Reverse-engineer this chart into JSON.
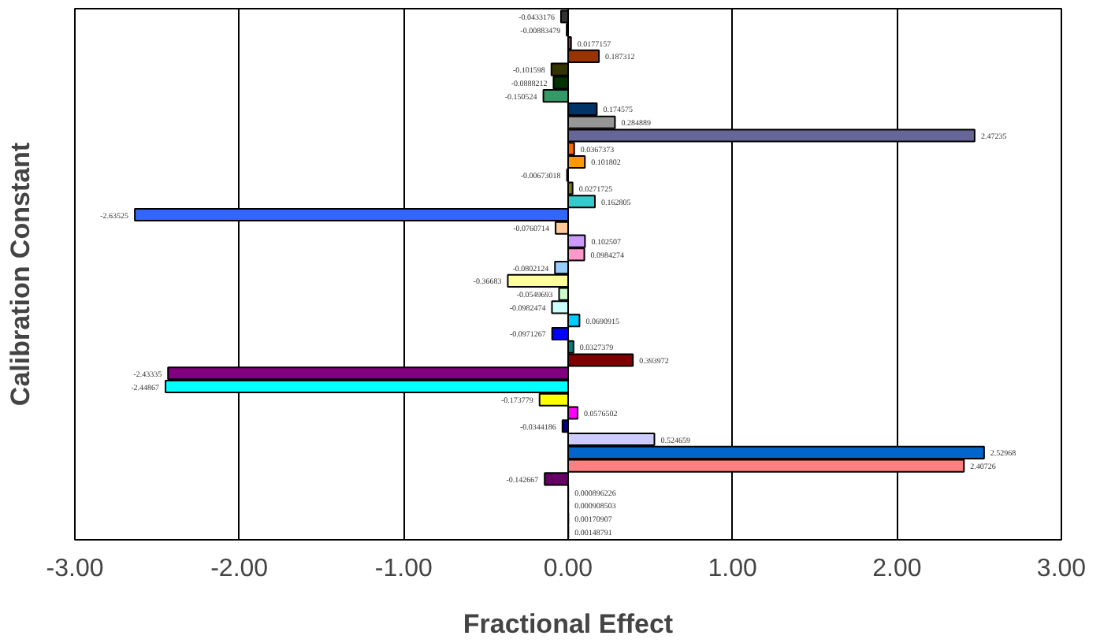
{
  "chart_data": {
    "type": "bar",
    "orientation": "horizontal",
    "xlabel": "Fractional Effect",
    "ylabel": "Calibration Constant",
    "categories": [
      null,
      null,
      null,
      null,
      null,
      null,
      null,
      null,
      null,
      null,
      null,
      null,
      null,
      null,
      null,
      null,
      null,
      null,
      null,
      null,
      null,
      null,
      null,
      null,
      null,
      null,
      null,
      null,
      null,
      null,
      null,
      null,
      null,
      null,
      null,
      null,
      null,
      null,
      null,
      null
    ],
    "values": [
      -0.0433176,
      -0.00883479,
      0.0177157,
      0.187312,
      -0.101598,
      -0.0888212,
      -0.150524,
      0.174575,
      0.284889,
      2.47235,
      0.0367373,
      0.101802,
      -0.00673018,
      0.0271725,
      0.162805,
      -2.63525,
      -0.0760714,
      0.102507,
      0.0984274,
      -0.0802124,
      -0.36683,
      -0.0549693,
      -0.0982474,
      0.0690915,
      -0.0971267,
      0.0327379,
      0.393972,
      -2.43335,
      -2.44867,
      -0.173779,
      0.0576502,
      -0.0344186,
      0.524659,
      2.52968,
      2.40726,
      -0.142667,
      0.000896226,
      0.000908503,
      0.00170907,
      0.00148791
    ],
    "colors": [
      "#333333",
      "#000080",
      "#993366",
      "#993300",
      "#333300",
      "#003300",
      "#339966",
      "#003366",
      "#969696",
      "#666699",
      "#ff6600",
      "#ff9900",
      "#808000",
      "#808000",
      "#33cccc",
      "#3366ff",
      "#ffcc99",
      "#cc99ff",
      "#ff99cc",
      "#99ccff",
      "#ffff99",
      "#ccffcc",
      "#ccffff",
      "#00ccff",
      "#0000ff",
      "#008080",
      "#800000",
      "#800080",
      "#00ffff",
      "#ffff00",
      "#ff00ff",
      "#000080",
      "#ccccff",
      "#0066cc",
      "#ff8080",
      "#660066",
      "#000000",
      "#000000",
      "#000000",
      "#000000"
    ],
    "data_labels": true,
    "xlim": [
      -3,
      3
    ],
    "xticks": [
      {
        "value": -3,
        "label": "-3.00"
      },
      {
        "value": -2,
        "label": "-2.00"
      },
      {
        "value": -1,
        "label": "-1.00"
      },
      {
        "value": 0,
        "label": "0.00"
      },
      {
        "value": 1,
        "label": "1.00"
      },
      {
        "value": 2,
        "label": "2.00"
      },
      {
        "value": 3,
        "label": "3.00"
      }
    ],
    "grid": "x"
  }
}
